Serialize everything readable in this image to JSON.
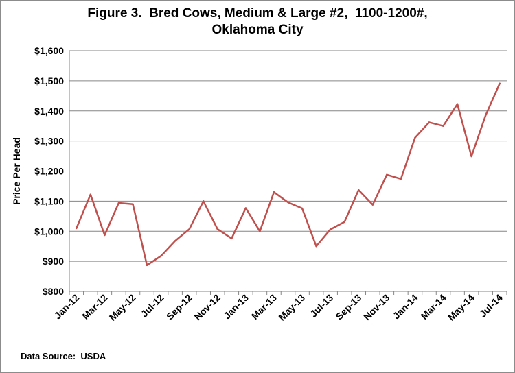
{
  "chart_data": {
    "type": "line",
    "title_line1": "Figure 3.  Bred Cows, Medium & Large #2,  1100-1200#,",
    "title_line2": "Oklahoma City",
    "ylabel": "Price Per Head",
    "xlabel": "",
    "ylim": [
      800,
      1600
    ],
    "yticks": [
      "$800",
      "$900",
      "$1,000",
      "$1,100",
      "$1,200",
      "$1,300",
      "$1,400",
      "$1,500",
      "$1,600"
    ],
    "ytick_values": [
      800,
      900,
      1000,
      1100,
      1200,
      1300,
      1400,
      1500,
      1600
    ],
    "x": [
      "Jan-12",
      "Feb-12",
      "Mar-12",
      "Apr-12",
      "May-12",
      "Jun-12",
      "Jul-12",
      "Aug-12",
      "Sep-12",
      "Oct-12",
      "Nov-12",
      "Dec-12",
      "Jan-13",
      "Feb-13",
      "Mar-13",
      "Apr-13",
      "May-13",
      "Jun-13",
      "Jul-13",
      "Aug-13",
      "Sep-13",
      "Oct-13",
      "Nov-13",
      "Dec-13",
      "Jan-14",
      "Feb-14",
      "Mar-14",
      "Apr-14",
      "May-14",
      "Jun-14",
      "Jul-14"
    ],
    "xtick_labels": [
      "Jan-12",
      "Mar-12",
      "May-12",
      "Jul-12",
      "Sep-12",
      "Nov-12",
      "Jan-13",
      "Mar-13",
      "May-13",
      "Jul-13",
      "Sep-13",
      "Nov-13",
      "Jan-14",
      "Mar-14",
      "May-14",
      "Jul-14"
    ],
    "series": [
      {
        "color": "#c0504d",
        "values": [
          1010,
          1122,
          987,
          1094,
          1090,
          887,
          918,
          968,
          1007,
          1100,
          1007,
          976,
          1077,
          1000,
          1130,
          1096,
          1076,
          950,
          1006,
          1031,
          1137,
          1088,
          1188,
          1174,
          1311,
          1362,
          1350,
          1423,
          1249,
          1385,
          1491
        ]
      }
    ],
    "grid": true,
    "legend": "none"
  },
  "footer": {
    "source": "Data Source:  USDA"
  }
}
